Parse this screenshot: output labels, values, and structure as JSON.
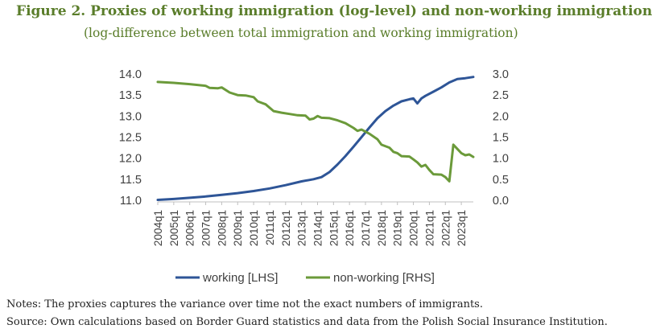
{
  "figure": {
    "title": "Figure 2. Proxies of working immigration (log-level) and non-working immigration",
    "subtitle": "(log-difference between total immigration and working immigration)"
  },
  "notes": {
    "line1": "Notes: The proxies captures the variance over time not the exact numbers of immigrants.",
    "line2": "Source: Own calculations based on Border Guard statistics and data from the Polish Social Insurance Institution."
  },
  "chart_data": {
    "type": "line",
    "x_tick_labels": [
      "2004q1",
      "2005q1",
      "2006q1",
      "2007q1",
      "2008q1",
      "2009q1",
      "2010q1",
      "2011q1",
      "2012q1",
      "2013q1",
      "2014q1",
      "2015q1",
      "2016q1",
      "2017q1",
      "2018q1",
      "2019q1",
      "2020q1",
      "2021q1",
      "2022q1",
      "2023q1"
    ],
    "x_start": "2004q1",
    "x_end": "2023q4",
    "left_axis": {
      "min": 11.0,
      "max": 14.0,
      "ticks": [
        "11.0",
        "11.5",
        "12.0",
        "12.5",
        "13.0",
        "13.5",
        "14.0"
      ]
    },
    "right_axis": {
      "min": 0.0,
      "max": 3.0,
      "ticks": [
        "0.0",
        "0.5",
        "1.0",
        "1.5",
        "2.0",
        "2.5",
        "3.0"
      ]
    },
    "grid": false,
    "legend_position": "bottom",
    "colors": {
      "working": "#2e5597",
      "non_working": "#6b9a3a"
    },
    "series": [
      {
        "name": "working [LHS]",
        "axis": "left",
        "points": [
          [
            "2004q1",
            11.01
          ],
          [
            "2005q1",
            11.03
          ],
          [
            "2006q1",
            11.06
          ],
          [
            "2007q1",
            11.09
          ],
          [
            "2008q1",
            11.13
          ],
          [
            "2009q1",
            11.17
          ],
          [
            "2010q1",
            11.22
          ],
          [
            "2011q1",
            11.28
          ],
          [
            "2012q1",
            11.36
          ],
          [
            "2013q1",
            11.45
          ],
          [
            "2013q4",
            11.5
          ],
          [
            "2014q2",
            11.55
          ],
          [
            "2014q4",
            11.67
          ],
          [
            "2015q2",
            11.85
          ],
          [
            "2015q4",
            12.05
          ],
          [
            "2016q2",
            12.27
          ],
          [
            "2016q4",
            12.5
          ],
          [
            "2017q2",
            12.73
          ],
          [
            "2017q4",
            12.95
          ],
          [
            "2018q2",
            13.12
          ],
          [
            "2018q4",
            13.25
          ],
          [
            "2019q2",
            13.35
          ],
          [
            "2019q4",
            13.4
          ],
          [
            "2020q1",
            13.42
          ],
          [
            "2020q2",
            13.3
          ],
          [
            "2020q3",
            13.42
          ],
          [
            "2020q4",
            13.48
          ],
          [
            "2021q2",
            13.58
          ],
          [
            "2021q4",
            13.68
          ],
          [
            "2022q2",
            13.8
          ],
          [
            "2022q4",
            13.88
          ],
          [
            "2023q2",
            13.9
          ],
          [
            "2023q4",
            13.93
          ]
        ]
      },
      {
        "name": "non-working [RHS]",
        "axis": "right",
        "points": [
          [
            "2004q1",
            2.81
          ],
          [
            "2005q1",
            2.79
          ],
          [
            "2006q1",
            2.76
          ],
          [
            "2007q1",
            2.72
          ],
          [
            "2007q2",
            2.67
          ],
          [
            "2007q4",
            2.66
          ],
          [
            "2008q1",
            2.68
          ],
          [
            "2008q3",
            2.56
          ],
          [
            "2009q1",
            2.5
          ],
          [
            "2009q3",
            2.49
          ],
          [
            "2010q1",
            2.45
          ],
          [
            "2010q2",
            2.35
          ],
          [
            "2010q4",
            2.28
          ],
          [
            "2011q2",
            2.12
          ],
          [
            "2011q4",
            2.08
          ],
          [
            "2012q2",
            2.05
          ],
          [
            "2012q4",
            2.02
          ],
          [
            "2013q2",
            2.01
          ],
          [
            "2013q3",
            1.92
          ],
          [
            "2013q4",
            1.94
          ],
          [
            "2014q1",
            2.0
          ],
          [
            "2014q2",
            1.96
          ],
          [
            "2014q4",
            1.95
          ],
          [
            "2015q2",
            1.9
          ],
          [
            "2015q4",
            1.83
          ],
          [
            "2016q2",
            1.72
          ],
          [
            "2016q3",
            1.65
          ],
          [
            "2016q4",
            1.68
          ],
          [
            "2017q2",
            1.58
          ],
          [
            "2017q4",
            1.45
          ],
          [
            "2018q1",
            1.32
          ],
          [
            "2018q3",
            1.25
          ],
          [
            "2018q4",
            1.15
          ],
          [
            "2019q1",
            1.12
          ],
          [
            "2019q2",
            1.05
          ],
          [
            "2019q4",
            1.04
          ],
          [
            "2020q1",
            0.97
          ],
          [
            "2020q2",
            0.9
          ],
          [
            "2020q3",
            0.8
          ],
          [
            "2020q4",
            0.84
          ],
          [
            "2021q1",
            0.72
          ],
          [
            "2021q2",
            0.62
          ],
          [
            "2021q4",
            0.61
          ],
          [
            "2022q1",
            0.55
          ],
          [
            "2022q2",
            0.45
          ],
          [
            "2022q3",
            1.32
          ],
          [
            "2022q4",
            1.22
          ],
          [
            "2023q1",
            1.12
          ],
          [
            "2023q2",
            1.07
          ],
          [
            "2023q3",
            1.09
          ],
          [
            "2023q4",
            1.03
          ]
        ]
      }
    ]
  }
}
